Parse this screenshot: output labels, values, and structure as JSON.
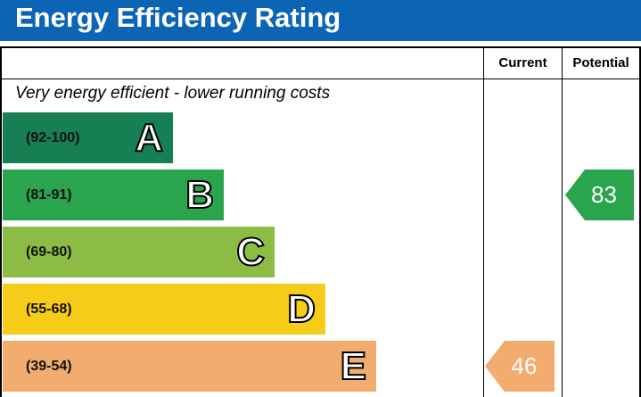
{
  "title": "Energy Efficiency Rating",
  "columns": {
    "current": "Current",
    "potential": "Potential"
  },
  "top_note": "Very energy efficient - lower running costs",
  "colors": {
    "header": "#0c64b4",
    "A": "#177f54",
    "B": "#2ba44e",
    "C": "#8cbc44",
    "D": "#f5cc17",
    "E": "#f1ac6e"
  },
  "chart_data": {
    "type": "bar",
    "categories": [
      "A",
      "B",
      "C",
      "D",
      "E"
    ],
    "ranges": [
      "(92-100)",
      "(81-91)",
      "(69-80)",
      "(55-68)",
      "(39-54)"
    ],
    "current": {
      "value": 46,
      "band": "E"
    },
    "potential": {
      "value": 83,
      "band": "B"
    }
  }
}
